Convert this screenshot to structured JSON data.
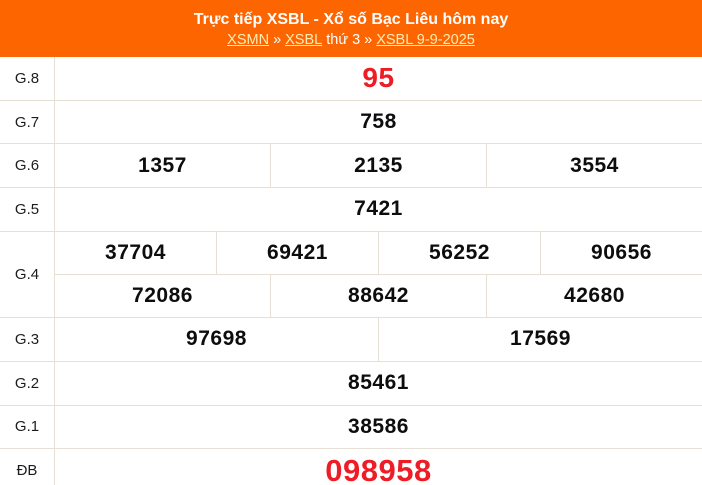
{
  "header": {
    "title": "Trực tiếp XSBL - Xổ số Bạc Liêu hôm nay",
    "breadcrumb": [
      {
        "text": "XSMN",
        "link": true
      },
      {
        "text": "»",
        "link": false,
        "sep": true
      },
      {
        "text": "XSBL",
        "link": true
      },
      {
        "text": "thứ 3",
        "link": false
      },
      {
        "text": "»",
        "link": false,
        "sep": true
      },
      {
        "text": "XSBL 9-9-2025",
        "link": true
      }
    ]
  },
  "results": {
    "rows": [
      {
        "label": "G.8",
        "highlight": "red",
        "size": "lg",
        "lines": [
          [
            "95"
          ]
        ]
      },
      {
        "label": "G.7",
        "lines": [
          [
            "758"
          ]
        ]
      },
      {
        "label": "G.6",
        "lines": [
          [
            "1357",
            "2135",
            "3554"
          ]
        ]
      },
      {
        "label": "G.5",
        "lines": [
          [
            "7421"
          ]
        ]
      },
      {
        "label": "G.4",
        "lines": [
          [
            "37704",
            "69421",
            "56252",
            "90656"
          ],
          [
            "72086",
            "88642",
            "42680"
          ]
        ]
      },
      {
        "label": "G.3",
        "lines": [
          [
            "97698",
            "17569"
          ]
        ]
      },
      {
        "label": "G.2",
        "lines": [
          [
            "85461"
          ]
        ]
      },
      {
        "label": "G.1",
        "lines": [
          [
            "38586"
          ]
        ]
      },
      {
        "label": "ĐB",
        "highlight": "red",
        "size": "xl",
        "lines": [
          [
            "098958"
          ]
        ]
      }
    ]
  },
  "colors": {
    "header_background": "#FD6500",
    "title_text": "#FFFFFF",
    "link_text": "#FFECB3",
    "highlight_number": "#EE1C25",
    "normal_number": "#0D0D0D",
    "grid_border": "#E6DFD6"
  }
}
